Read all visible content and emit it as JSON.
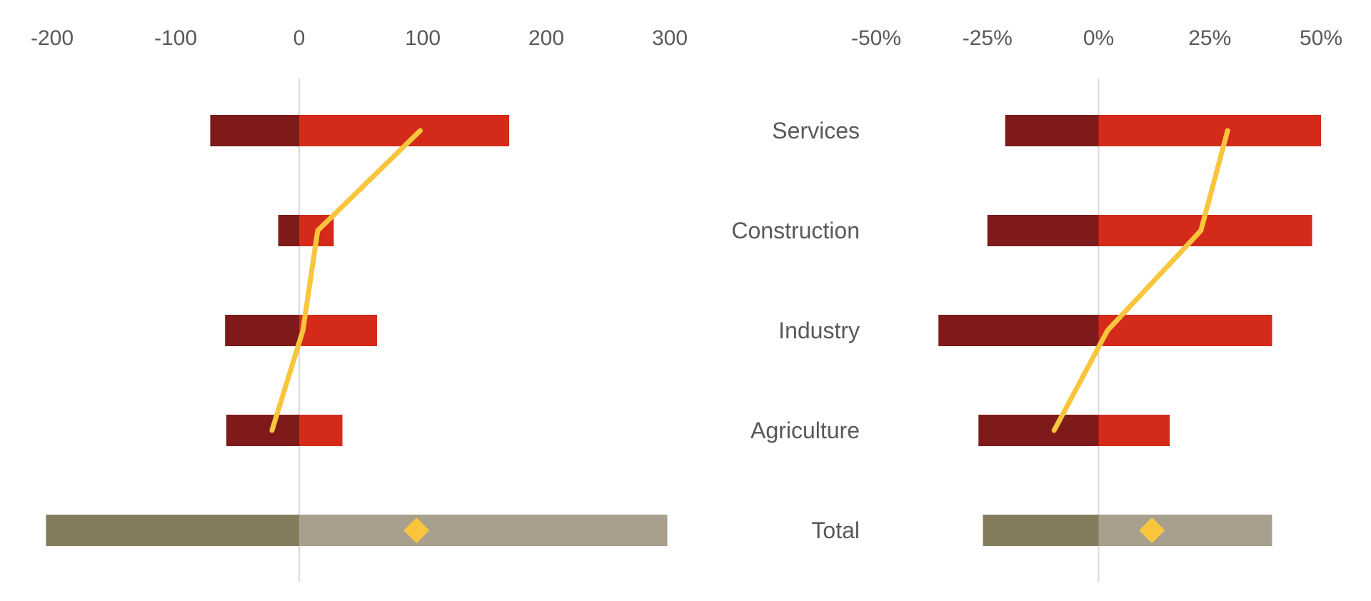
{
  "chart_data": [
    {
      "type": "bar",
      "orientation": "horizontal",
      "stacking": "diverging",
      "categories": [
        "Services",
        "Construction",
        "Industry",
        "Agriculture",
        "Total"
      ],
      "xlim": [
        -200,
        300
      ],
      "x_ticks": [
        "-200",
        "-100",
        "0",
        "100",
        "200",
        "300"
      ],
      "x_tick_values": [
        -200,
        -100,
        0,
        100,
        200,
        300
      ],
      "series": [
        {
          "kind": "bar",
          "color": "#7f1a1a",
          "total_color": "#857c5e",
          "values": [
            -72,
            -17,
            -60,
            -59,
            -205
          ]
        },
        {
          "kind": "bar",
          "color": "#d42a1a",
          "total_color": "#a8a08d",
          "values": [
            170,
            28,
            63,
            35,
            298
          ]
        },
        {
          "kind": "line",
          "color": "#f8c53c",
          "values": [
            98,
            15,
            3,
            -22,
            null
          ]
        },
        {
          "kind": "marker",
          "marker": "diamond",
          "color": "#f8c53c",
          "values": [
            null,
            null,
            null,
            null,
            95
          ]
        }
      ]
    },
    {
      "type": "bar",
      "orientation": "horizontal",
      "stacking": "diverging",
      "categories": [
        "Services",
        "Construction",
        "Industry",
        "Agriculture",
        "Total"
      ],
      "xlim": [
        -50,
        50
      ],
      "x_ticks": [
        "-50%",
        "-25%",
        "0%",
        "25%",
        "50%"
      ],
      "x_tick_values": [
        -50,
        -25,
        0,
        25,
        50
      ],
      "series": [
        {
          "kind": "bar",
          "color": "#7f1a1a",
          "total_color": "#857c5e",
          "values": [
            -21,
            -25,
            -36,
            -27,
            -26
          ]
        },
        {
          "kind": "bar",
          "color": "#d42a1a",
          "total_color": "#a8a08d",
          "values": [
            50,
            48,
            39,
            16,
            39
          ]
        },
        {
          "kind": "line",
          "color": "#f8c53c",
          "values": [
            29,
            23,
            2,
            -10,
            null
          ]
        },
        {
          "kind": "marker",
          "marker": "diamond",
          "color": "#f8c53c",
          "values": [
            null,
            null,
            null,
            null,
            12
          ]
        }
      ]
    }
  ]
}
